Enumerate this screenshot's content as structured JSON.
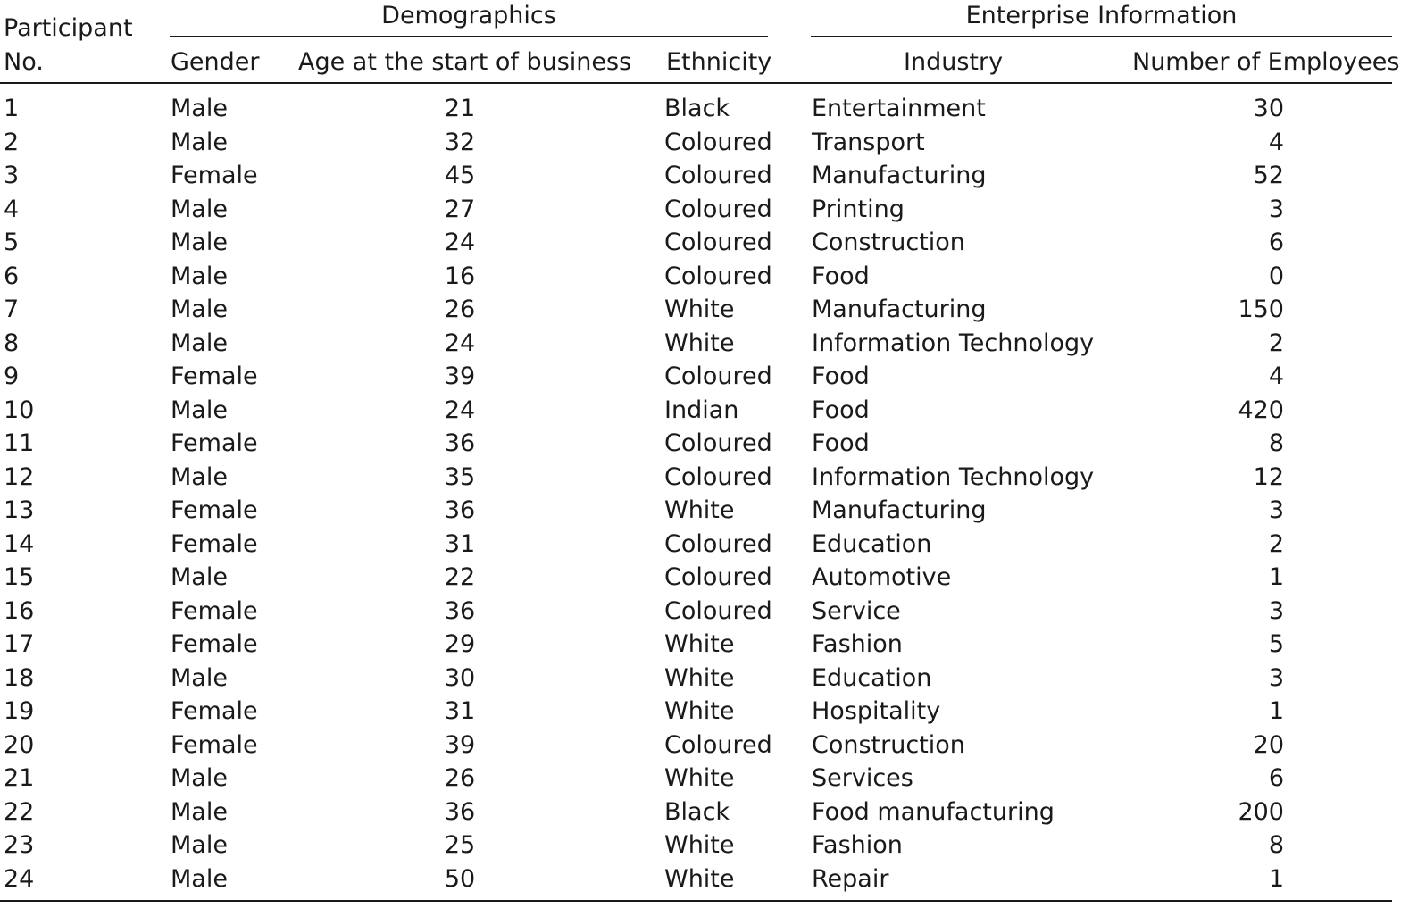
{
  "table": {
    "header": {
      "participant_line1": "Participant",
      "participant_line2": "No.",
      "group_demographics": "Demographics",
      "group_enterprise": "Enterprise Information",
      "gender": "Gender",
      "age": "Age at the start of business",
      "ethnicity": "Ethnicity",
      "industry": "Industry",
      "employees": "Number of Employees"
    },
    "rows": [
      {
        "no": "1",
        "gender": "Male",
        "age": "21",
        "ethnicity": "Black",
        "industry": "Entertainment",
        "employees": "30"
      },
      {
        "no": "2",
        "gender": "Male",
        "age": "32",
        "ethnicity": "Coloured",
        "industry": "Transport",
        "employees": "4"
      },
      {
        "no": "3",
        "gender": "Female",
        "age": "45",
        "ethnicity": "Coloured",
        "industry": "Manufacturing",
        "employees": "52"
      },
      {
        "no": "4",
        "gender": "Male",
        "age": "27",
        "ethnicity": "Coloured",
        "industry": "Printing",
        "employees": "3"
      },
      {
        "no": "5",
        "gender": "Male",
        "age": "24",
        "ethnicity": "Coloured",
        "industry": "Construction",
        "employees": "6"
      },
      {
        "no": "6",
        "gender": "Male",
        "age": "16",
        "ethnicity": "Coloured",
        "industry": "Food",
        "employees": "0"
      },
      {
        "no": "7",
        "gender": "Male",
        "age": "26",
        "ethnicity": "White",
        "industry": "Manufacturing",
        "employees": "150"
      },
      {
        "no": "8",
        "gender": "Male",
        "age": "24",
        "ethnicity": "White",
        "industry": "Information Technology",
        "employees": "2"
      },
      {
        "no": "9",
        "gender": "Female",
        "age": "39",
        "ethnicity": "Coloured",
        "industry": "Food",
        "employees": "4"
      },
      {
        "no": "10",
        "gender": "Male",
        "age": "24",
        "ethnicity": "Indian",
        "industry": "Food",
        "employees": "420"
      },
      {
        "no": "11",
        "gender": "Female",
        "age": "36",
        "ethnicity": "Coloured",
        "industry": "Food",
        "employees": "8"
      },
      {
        "no": "12",
        "gender": "Male",
        "age": "35",
        "ethnicity": "Coloured",
        "industry": "Information Technology",
        "employees": "12"
      },
      {
        "no": "13",
        "gender": "Female",
        "age": "36",
        "ethnicity": "White",
        "industry": "Manufacturing",
        "employees": "3"
      },
      {
        "no": "14",
        "gender": "Female",
        "age": "31",
        "ethnicity": "Coloured",
        "industry": "Education",
        "employees": "2"
      },
      {
        "no": "15",
        "gender": "Male",
        "age": "22",
        "ethnicity": "Coloured",
        "industry": "Automotive",
        "employees": "1"
      },
      {
        "no": "16",
        "gender": "Female",
        "age": "36",
        "ethnicity": "Coloured",
        "industry": "Service",
        "employees": "3"
      },
      {
        "no": "17",
        "gender": "Female",
        "age": "29",
        "ethnicity": "White",
        "industry": "Fashion",
        "employees": "5"
      },
      {
        "no": "18",
        "gender": "Male",
        "age": "30",
        "ethnicity": "White",
        "industry": "Education",
        "employees": "3"
      },
      {
        "no": "19",
        "gender": "Female",
        "age": "31",
        "ethnicity": "White",
        "industry": "Hospitality",
        "employees": "1"
      },
      {
        "no": "20",
        "gender": "Female",
        "age": "39",
        "ethnicity": "Coloured",
        "industry": "Construction",
        "employees": "20"
      },
      {
        "no": "21",
        "gender": "Male",
        "age": "26",
        "ethnicity": "White",
        "industry": "Services",
        "employees": "6"
      },
      {
        "no": "22",
        "gender": "Male",
        "age": "36",
        "ethnicity": "Black",
        "industry": "Food manufacturing",
        "employees": "200"
      },
      {
        "no": "23",
        "gender": "Male",
        "age": "25",
        "ethnicity": "White",
        "industry": "Fashion",
        "employees": "8"
      },
      {
        "no": "24",
        "gender": "Male",
        "age": "50",
        "ethnicity": "White",
        "industry": "Repair",
        "employees": "1"
      }
    ]
  }
}
